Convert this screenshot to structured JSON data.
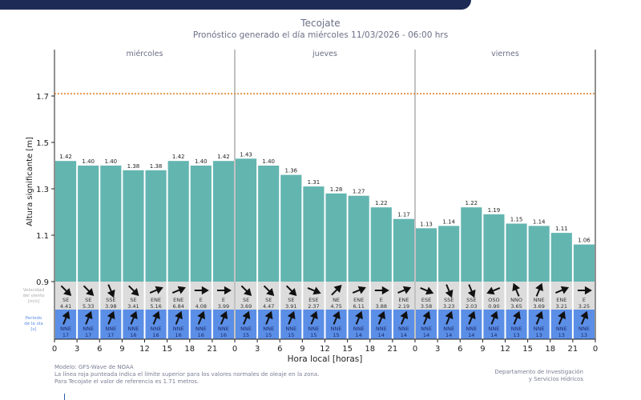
{
  "title": "Tecojate",
  "subtitle": "Pronóstico generado el día miércoles 11/03/2026 - 06:00 hrs",
  "footer": {
    "model": "Modelo: GFS-Wave de NOAA",
    "note1": "La línea roja punteada indica el límite superior para los valores normales de oleaje en la zona.",
    "note2": "Para Tecojate el valor de referencia es 1.71 metros.",
    "dept1": "Departamento de Investigación",
    "dept2": "y Servicios Hídricos"
  },
  "colors": {
    "bar": "#63b5b0",
    "wind_row": "#dcdcdc",
    "period_row": "#5b8ee6",
    "threshold": "#e07b1e",
    "header_band": "#1c2a55"
  },
  "chart_data": {
    "type": "bar",
    "title": "Tecojate",
    "xlabel": "Hora local [horas]",
    "ylabel": "Altura significante [m]",
    "ylim": [
      0.9,
      1.9
    ],
    "yticks": [
      0.9,
      1.1,
      1.3,
      1.5,
      1.7
    ],
    "xticks": [
      "0",
      "3",
      "6",
      "9",
      "12",
      "15",
      "18",
      "21",
      "0",
      "3",
      "6",
      "9",
      "12",
      "15",
      "18",
      "21",
      "0",
      "3",
      "6",
      "9",
      "12",
      "15",
      "18",
      "21",
      "0"
    ],
    "days": [
      "miércoles",
      "jueves",
      "viernes"
    ],
    "threshold": 1.71,
    "values": [
      1.42,
      1.4,
      1.4,
      1.38,
      1.38,
      1.42,
      1.4,
      1.42,
      1.43,
      1.4,
      1.36,
      1.31,
      1.28,
      1.27,
      1.22,
      1.17,
      1.13,
      1.14,
      1.22,
      1.19,
      1.15,
      1.14,
      1.11,
      1.06
    ],
    "wind_label": [
      "Velocidad",
      "del viento",
      "[m/s]"
    ],
    "wind_dir": [
      "SE",
      "SE",
      "SSE",
      "SE",
      "ENE",
      "ENE",
      "E",
      "E",
      "SE",
      "SE",
      "SE",
      "ESE",
      "NE",
      "ENE",
      "E",
      "ENE",
      "ESE",
      "SSE",
      "SSE",
      "OSO",
      "NNO",
      "NNE",
      "ENE",
      "E"
    ],
    "wind_speed": [
      "4.41",
      "5.33",
      "3.98",
      "3.41",
      "5.16",
      "6.84",
      "4.08",
      "3.99",
      "3.69",
      "4.47",
      "3.91",
      "2.37",
      "4.75",
      "6.11",
      "3.88",
      "2.19",
      "3.58",
      "3.23",
      "2.03",
      "0.90",
      "3.65",
      "3.69",
      "3.21",
      "3.25"
    ],
    "period_label": [
      "Periodo",
      "de la ola",
      "[s]"
    ],
    "wave_dir": [
      "NNE",
      "NNE",
      "NNE",
      "NNE",
      "NNE",
      "NNE",
      "NNE",
      "NNE",
      "NNE",
      "NNE",
      "NNE",
      "NNE",
      "NNE",
      "NNE",
      "NNE",
      "NNE",
      "NNE",
      "NNE",
      "NNE",
      "NNE",
      "NNE",
      "NNE",
      "NNE",
      "NNE"
    ],
    "period": [
      "17",
      "17",
      "17",
      "16",
      "16",
      "16",
      "16",
      "16",
      "15",
      "15",
      "15",
      "15",
      "15",
      "14",
      "14",
      "14",
      "14",
      "14",
      "14",
      "14",
      "13",
      "13",
      "13",
      "13"
    ]
  }
}
